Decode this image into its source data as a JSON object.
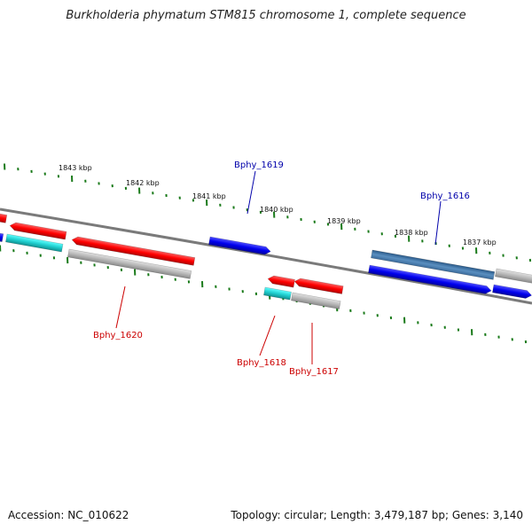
{
  "title": "Burkholderia phymatum STM815 chromosome 1, complete sequence",
  "footer": {
    "accession": "Accession: NC_010622",
    "summary": "Topology: circular; Length: 3,479,187 bp; Genes: 3,140"
  },
  "colors": {
    "forward_gene": "#1010e0",
    "reverse_gene": "#e01010",
    "cds_forward": "#4a7fb0",
    "cds_reverse": "#20c8c8",
    "pseudo": "#b0b0b0",
    "backbone": "#808080",
    "tick": "#1a7a1a",
    "label_forward": "#0000aa",
    "label_reverse": "#cc0000"
  },
  "kbp_labels": [
    "1843 kbp",
    "1842 kbp",
    "1841 kbp",
    "1840 kbp",
    "1839 kbp",
    "1838 kbp",
    "1837 kbp"
  ],
  "gene_labels": {
    "bphy_1619": "Bphy_1619",
    "bphy_1616": "Bphy_1616",
    "bphy_1620": "Bphy_1620",
    "bphy_1618": "Bphy_1618",
    "bphy_1617": "Bphy_1617"
  }
}
